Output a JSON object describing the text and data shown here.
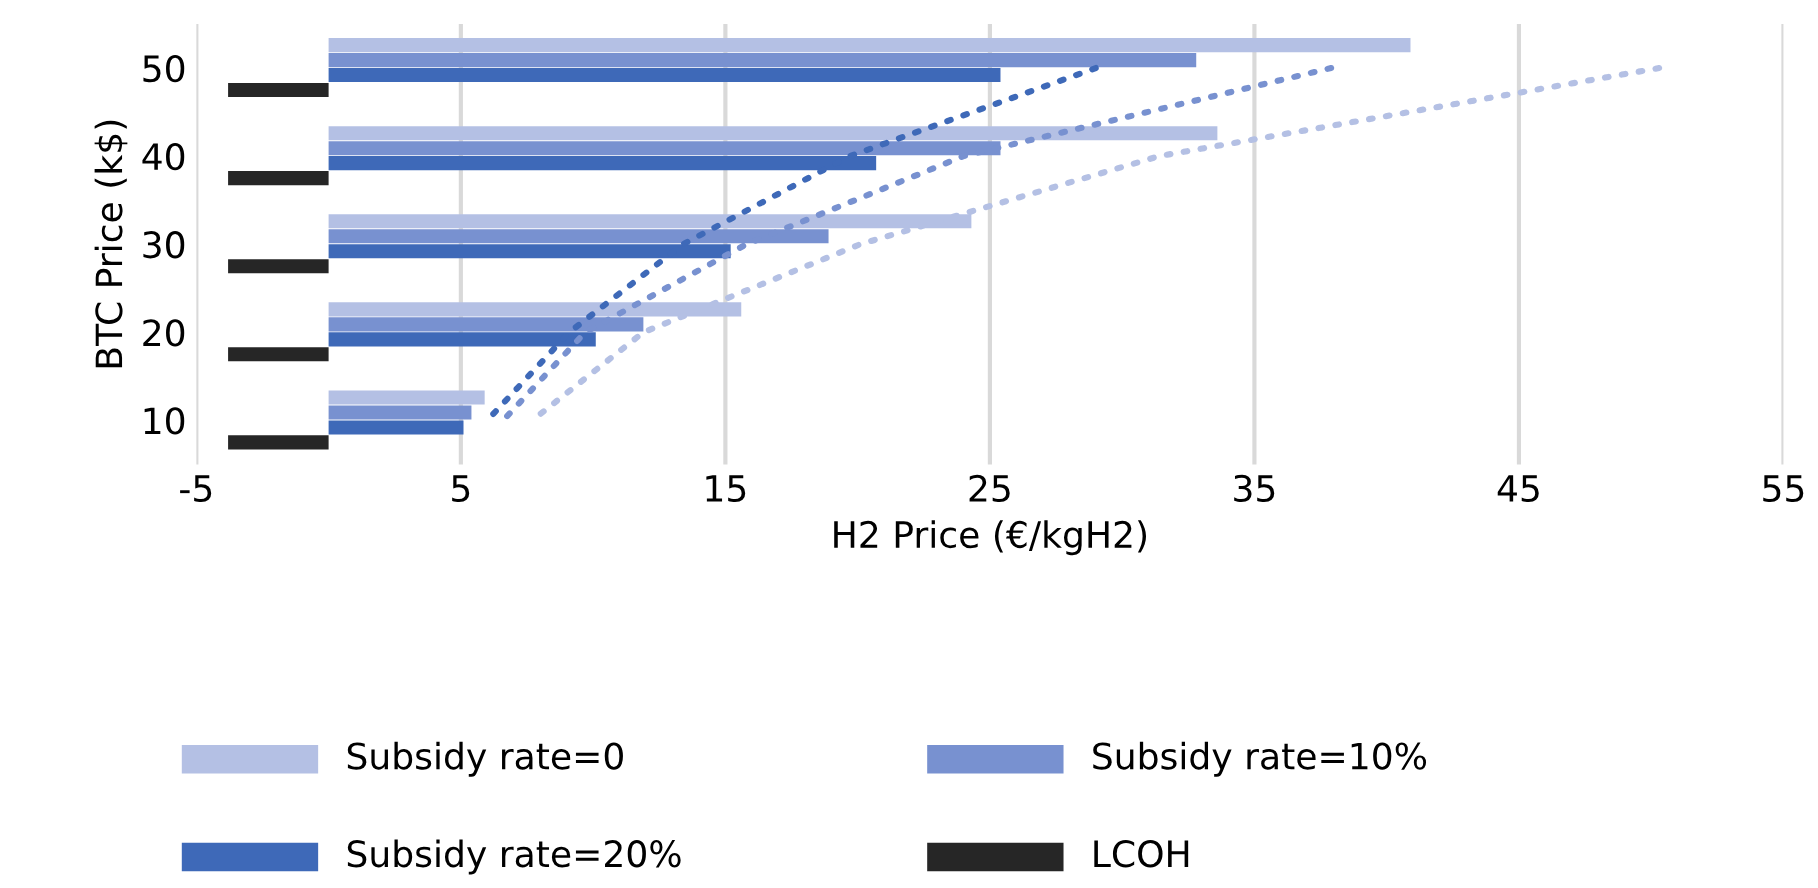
{
  "chart_data": {
    "type": "bar",
    "orientation": "horizontal",
    "xlabel": "H2 Price (€/kgH2)",
    "ylabel": "BTC Price (k$)",
    "categories": [
      "50",
      "40",
      "30",
      "20",
      "10"
    ],
    "series": [
      {
        "name": "Subsidy rate=0",
        "color": "#b4c0e4",
        "values": [
          40.9,
          33.6,
          24.3,
          15.6,
          5.9
        ]
      },
      {
        "name": "Subsidy rate=10%",
        "color": "#7891d0",
        "values": [
          32.8,
          25.4,
          18.9,
          11.9,
          5.4
        ]
      },
      {
        "name": "Subsidy rate=20%",
        "color": "#3e69b8",
        "values": [
          25.4,
          20.7,
          15.2,
          10.1,
          5.1
        ]
      },
      {
        "name": "LCOH",
        "color": "#262626",
        "values": [
          -3.8,
          -3.8,
          -3.8,
          -3.8,
          -3.8
        ]
      },
      {
        "type": "line",
        "line_style": "dotted",
        "color": "#b4c0e4",
        "values": [
          50.3,
          31.4,
          20.1,
          11.9,
          7.7
        ]
      },
      {
        "type": "line",
        "line_style": "dotted",
        "color": "#7891d0",
        "values": [
          37.9,
          24.0,
          15.8,
          9.7,
          6.6
        ]
      },
      {
        "type": "line",
        "line_style": "dotted",
        "color": "#3e69b8",
        "values": [
          29.0,
          19.7,
          13.4,
          9.1,
          6.0
        ]
      }
    ],
    "xlim": [
      -5,
      55
    ],
    "xticks": [
      -5,
      5,
      15,
      25,
      35,
      45,
      55
    ],
    "grid": "x",
    "legend": "bottom"
  }
}
